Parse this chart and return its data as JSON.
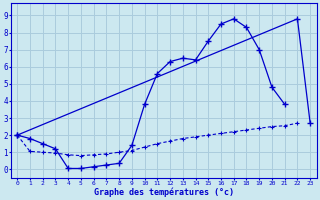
{
  "bg_color": "#cce8f0",
  "line_color": "#0000cc",
  "grid_color": "#aaccdd",
  "xlabel": "Graphe des températures (°c)",
  "xlabel_color": "#0000cc",
  "ylabel_ticks": [
    0,
    1,
    2,
    3,
    4,
    5,
    6,
    7,
    8,
    9
  ],
  "xlim": [
    -0.5,
    23.5
  ],
  "ylim": [
    -0.5,
    9.7
  ],
  "line1_x": [
    0,
    1,
    2,
    3,
    4,
    5,
    6,
    7,
    8,
    9,
    10,
    11,
    12,
    13,
    14,
    15,
    16,
    17,
    18,
    19,
    20,
    21
  ],
  "line1_y": [
    2.0,
    1.8,
    1.5,
    1.2,
    0.05,
    0.05,
    0.15,
    0.25,
    0.35,
    1.4,
    3.8,
    5.6,
    6.3,
    6.5,
    6.4,
    7.5,
    8.5,
    8.8,
    8.3,
    7.0,
    4.8,
    3.8
  ],
  "line2_x": [
    0,
    22,
    23
  ],
  "line2_y": [
    2.0,
    8.8,
    2.7
  ],
  "line3_x": [
    0,
    1,
    2,
    3,
    4,
    5,
    6,
    7,
    8,
    9,
    10,
    11,
    12,
    13,
    14,
    15,
    16,
    17,
    18,
    19,
    20,
    21,
    22
  ],
  "line3_y": [
    2.0,
    1.05,
    1.0,
    0.95,
    0.85,
    0.8,
    0.85,
    0.9,
    1.0,
    1.1,
    1.3,
    1.5,
    1.65,
    1.8,
    1.9,
    2.0,
    2.1,
    2.2,
    2.3,
    2.4,
    2.5,
    2.55,
    2.7
  ]
}
